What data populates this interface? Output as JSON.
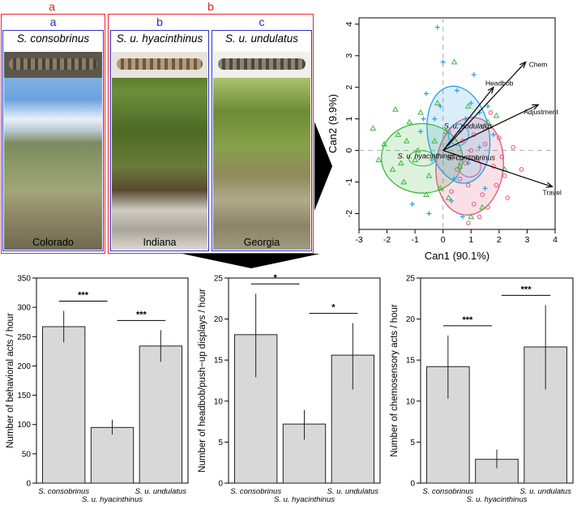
{
  "panels": {
    "group_labels": [
      "a",
      "b"
    ],
    "columns": [
      {
        "letter": "a",
        "species": "S. consobrinus",
        "location": "Colorado"
      },
      {
        "letter": "b",
        "species": "S. u. hyacinthinus",
        "location": "Indiana"
      },
      {
        "letter": "c",
        "species": "S. u. undulatus",
        "location": "Georgia"
      }
    ]
  },
  "chart_data": [
    {
      "type": "scatter",
      "title": "",
      "xlabel": "Can1 (90.1%)",
      "ylabel": "Can2 (9.9%)",
      "xlim": [
        -3,
        4
      ],
      "ylim": [
        -2.5,
        4.2
      ],
      "xticks": [
        -3,
        -2,
        -1,
        0,
        1,
        2,
        3,
        4
      ],
      "yticks": [
        -2,
        -1,
        0,
        1,
        2,
        3,
        4
      ],
      "groups": [
        {
          "name": "S. consobrinus",
          "label_pos": [
            1.0,
            -0.3
          ],
          "color": "#e0557a",
          "marker": "circle",
          "ellipse": {
            "cx": 0.95,
            "cy": -0.5,
            "rx": 1.2,
            "ry": 1.55,
            "rot": 6
          },
          "points": [
            [
              0.6,
              -0.9
            ],
            [
              0.9,
              -1.1
            ],
            [
              1.2,
              -0.3
            ],
            [
              1.5,
              0.2
            ],
            [
              1.8,
              -0.5
            ],
            [
              0.4,
              -0.2
            ],
            [
              1.1,
              0.5
            ],
            [
              2.2,
              -0.8
            ],
            [
              1.4,
              -1.4
            ],
            [
              0.7,
              0.3
            ],
            [
              1.6,
              -1.8
            ],
            [
              2.0,
              0.4
            ],
            [
              0.3,
              -1.3
            ],
            [
              1.3,
              -2.1
            ],
            [
              0.9,
              -2.3
            ],
            [
              2.3,
              -1.5
            ],
            [
              1.0,
              0.0
            ],
            [
              1.7,
              1.2
            ],
            [
              0.5,
              -0.6
            ],
            [
              2.5,
              0.1
            ],
            [
              1.9,
              -1.1
            ],
            [
              0.2,
              0.6
            ],
            [
              1.1,
              -1.7
            ],
            [
              1.5,
              0.7
            ],
            [
              0.8,
              -0.4
            ],
            [
              2.1,
              -0.2
            ],
            [
              2.8,
              -0.6
            ]
          ]
        },
        {
          "name": "S. u. hyacinthinus",
          "label_pos": [
            -0.6,
            -0.25
          ],
          "color": "#3db83d",
          "marker": "triangle",
          "ellipse": {
            "cx": -0.75,
            "cy": -0.25,
            "rx": 1.45,
            "ry": 1.1,
            "rot": 2
          },
          "points": [
            [
              -2.3,
              -0.3
            ],
            [
              -2.1,
              0.2
            ],
            [
              -1.8,
              -0.6
            ],
            [
              -1.6,
              0.5
            ],
            [
              -1.4,
              -1.0
            ],
            [
              -1.2,
              0.9
            ],
            [
              -1.0,
              -0.3
            ],
            [
              -0.8,
              1.2
            ],
            [
              -0.5,
              -0.8
            ],
            [
              -0.3,
              0.3
            ],
            [
              -0.1,
              -1.2
            ],
            [
              0.1,
              0.6
            ],
            [
              -1.7,
              1.3
            ],
            [
              -0.6,
              -1.4
            ],
            [
              0.4,
              2.8
            ],
            [
              -0.2,
              1.5
            ],
            [
              -2.5,
              0.7
            ],
            [
              -0.9,
              0.0
            ],
            [
              0.6,
              -0.5
            ],
            [
              1.4,
              -1.8
            ],
            [
              1.6,
              0.9
            ],
            [
              2.2,
              -0.6
            ],
            [
              0.9,
              1.4
            ],
            [
              -1.3,
              0.3
            ],
            [
              0.2,
              -1.5
            ],
            [
              1.0,
              -2.1
            ],
            [
              -1.5,
              -0.4
            ],
            [
              1.9,
              1.1
            ]
          ]
        },
        {
          "name": "S. u. undulatus",
          "label_pos": [
            0.9,
            0.7
          ],
          "color": "#2a9ee0",
          "marker": "plus",
          "ellipse": {
            "cx": 0.55,
            "cy": 0.5,
            "rx": 1.1,
            "ry": 1.55,
            "rot": -10
          },
          "points": [
            [
              -0.2,
              3.9
            ],
            [
              0.0,
              2.8
            ],
            [
              0.5,
              1.9
            ],
            [
              1.0,
              1.5
            ],
            [
              1.3,
              1.2
            ],
            [
              0.6,
              0.6
            ],
            [
              -0.3,
              1.0
            ],
            [
              -0.6,
              1.8
            ],
            [
              1.6,
              1.4
            ],
            [
              0.2,
              0.2
            ],
            [
              -0.8,
              0.6
            ],
            [
              0.9,
              -0.4
            ],
            [
              1.5,
              -1.2
            ],
            [
              -1.1,
              -1.7
            ],
            [
              -0.5,
              -2.0
            ],
            [
              0.3,
              -1.6
            ],
            [
              0.8,
              1.0
            ],
            [
              1.8,
              0.5
            ],
            [
              -0.1,
              1.4
            ],
            [
              0.4,
              -0.9
            ],
            [
              1.1,
              2.4
            ],
            [
              -0.4,
              -0.3
            ],
            [
              0.7,
              -2.1
            ],
            [
              1.3,
              0.1
            ],
            [
              -0.7,
              1.0
            ]
          ]
        }
      ],
      "vectors": [
        {
          "name": "Chem",
          "x": 2.95,
          "y": 2.8
        },
        {
          "name": "Headbob",
          "x": 1.8,
          "y": 2.0
        },
        {
          "name": "Adjustment",
          "x": 3.4,
          "y": 1.45
        },
        {
          "name": "Travel",
          "x": 3.9,
          "y": -1.15
        }
      ]
    },
    {
      "type": "bar",
      "title": "",
      "xlabel": "",
      "ylabel": "Number of behavioral acts / hour",
      "ylim": [
        0,
        350
      ],
      "yticks": [
        0,
        50,
        100,
        150,
        200,
        250,
        300,
        350
      ],
      "categories": [
        "S. consobrinus",
        "S. u. hyacinthinus",
        "S. u. undulatus"
      ],
      "values": [
        267,
        95,
        234
      ],
      "error_low": [
        240,
        83,
        207
      ],
      "error_high": [
        294,
        108,
        261
      ],
      "significance": [
        {
          "from": 0,
          "to": 1,
          "label": "***"
        },
        {
          "from": 1,
          "to": 2,
          "label": "***"
        }
      ]
    },
    {
      "type": "bar",
      "title": "",
      "xlabel": "",
      "ylabel": "Number of headbob/push−up displays / hour",
      "ylim": [
        0,
        25
      ],
      "yticks": [
        0,
        5,
        10,
        15,
        20,
        25
      ],
      "categories": [
        "S. consobrinus",
        "S. u. hyacinthinus",
        "S. u. undulatus"
      ],
      "values": [
        18.1,
        7.2,
        15.6
      ],
      "error_low": [
        12.9,
        5.3,
        11.4
      ],
      "error_high": [
        23.1,
        8.9,
        19.5
      ],
      "significance": [
        {
          "from": 0,
          "to": 1,
          "label": "*"
        },
        {
          "from": 1,
          "to": 2,
          "label": "*"
        }
      ]
    },
    {
      "type": "bar",
      "title": "",
      "xlabel": "",
      "ylabel": "Number of chemosensory acts / hour",
      "ylim": [
        0,
        25
      ],
      "yticks": [
        0,
        5,
        10,
        15,
        20,
        25
      ],
      "categories": [
        "S. consobrinus",
        "S. u. hyacinthinus",
        "S. u. undulatus"
      ],
      "values": [
        14.2,
        2.9,
        16.6
      ],
      "error_low": [
        10.3,
        1.8,
        11.4
      ],
      "error_high": [
        18.0,
        4.1,
        21.7
      ],
      "significance": [
        {
          "from": 0,
          "to": 1,
          "label": "***"
        },
        {
          "from": 1,
          "to": 2,
          "label": "***"
        }
      ]
    }
  ]
}
